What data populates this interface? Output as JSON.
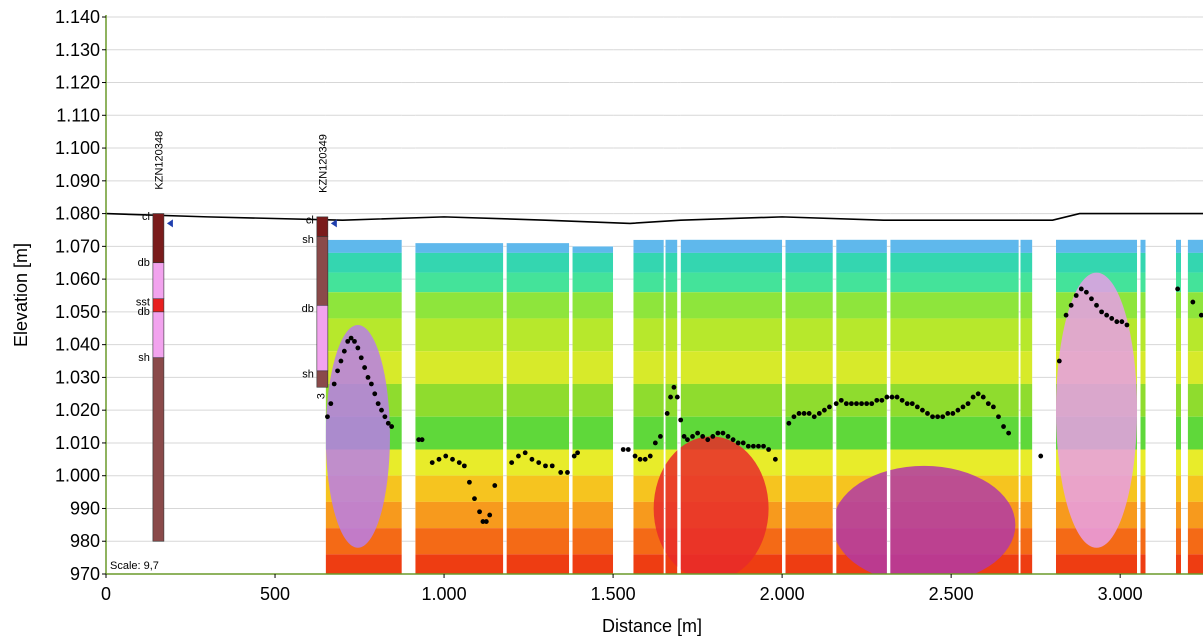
{
  "chart_data": {
    "type": "section",
    "xlabel": "Distance [m]",
    "ylabel": "Elevation [m]",
    "xlim": [
      0,
      3245
    ],
    "ylim": [
      970,
      1140
    ],
    "x_ticks": [
      {
        "value": 0,
        "label": "0"
      },
      {
        "value": 500,
        "label": "500"
      },
      {
        "value": 1000,
        "label": "1.000"
      },
      {
        "value": 1500,
        "label": "1.500"
      },
      {
        "value": 2000,
        "label": "2.000"
      },
      {
        "value": 2500,
        "label": "2.500"
      },
      {
        "value": 3000,
        "label": "3.000"
      }
    ],
    "y_ticks": [
      {
        "value": 970,
        "label": "970"
      },
      {
        "value": 980,
        "label": "980"
      },
      {
        "value": 990,
        "label": "990"
      },
      {
        "value": 1000,
        "label": "1.000"
      },
      {
        "value": 1010,
        "label": "1.010"
      },
      {
        "value": 1020,
        "label": "1.020"
      },
      {
        "value": 1030,
        "label": "1.030"
      },
      {
        "value": 1040,
        "label": "1.040"
      },
      {
        "value": 1050,
        "label": "1.050"
      },
      {
        "value": 1060,
        "label": "1.060"
      },
      {
        "value": 1070,
        "label": "1.070"
      },
      {
        "value": 1080,
        "label": "1.080"
      },
      {
        "value": 1090,
        "label": "1.090"
      },
      {
        "value": 1100,
        "label": "1.100"
      },
      {
        "value": 1110,
        "label": "1.110"
      },
      {
        "value": 1120,
        "label": "1.120"
      },
      {
        "value": 1130,
        "label": "1.130"
      },
      {
        "value": 1140,
        "label": "1.140"
      }
    ],
    "grid": "horizontal",
    "scale_label": "Scale: 9,7",
    "surface": [
      [
        0,
        1080
      ],
      [
        300,
        1079
      ],
      [
        700,
        1078
      ],
      [
        1000,
        1079
      ],
      [
        1300,
        1078
      ],
      [
        1550,
        1077
      ],
      [
        1700,
        1078
      ],
      [
        2000,
        1079
      ],
      [
        2300,
        1078
      ],
      [
        2550,
        1078
      ],
      [
        2800,
        1078
      ],
      [
        2880,
        1080
      ],
      [
        3245,
        1080
      ]
    ],
    "boreholes": [
      {
        "name": "KZN120348",
        "x": 155,
        "top": 1080,
        "bottom": 980,
        "water_level": 1077,
        "bottom_label": "",
        "layers": [
          {
            "code": "cl",
            "top": 1080,
            "bottom": 1065,
            "color": "#7a1c1c"
          },
          {
            "code": "db",
            "top": 1065,
            "bottom": 1054,
            "color": "#f2a3ee"
          },
          {
            "code": "sst",
            "top": 1054,
            "bottom": 1050,
            "color": "#e82020"
          },
          {
            "code": "db",
            "top": 1050,
            "bottom": 1036,
            "color": "#f2a3ee"
          },
          {
            "code": "sh",
            "top": 1036,
            "bottom": 980,
            "color": "#8a4a4a"
          }
        ],
        "labels": [
          {
            "text": "cl",
            "elev": 1078
          },
          {
            "text": "db",
            "elev": 1064
          },
          {
            "text": "sst",
            "elev": 1052
          },
          {
            "text": "db",
            "elev": 1049
          },
          {
            "text": "sh",
            "elev": 1035
          }
        ]
      },
      {
        "name": "KZN120349",
        "x": 640,
        "top": 1079,
        "bottom": 1027,
        "water_level": 1077,
        "bottom_label": "3",
        "layers": [
          {
            "code": "cl",
            "top": 1079,
            "bottom": 1073,
            "color": "#7a1c1c"
          },
          {
            "code": "sh",
            "top": 1073,
            "bottom": 1052,
            "color": "#8a4a4a"
          },
          {
            "code": "db",
            "top": 1052,
            "bottom": 1032,
            "color": "#f2a3ee"
          },
          {
            "code": "sh",
            "top": 1032,
            "bottom": 1027,
            "color": "#8a4a4a"
          }
        ],
        "labels": [
          {
            "text": "cl",
            "elev": 1077
          },
          {
            "text": "sh",
            "elev": 1071
          },
          {
            "text": "db",
            "elev": 1050
          },
          {
            "text": "sh",
            "elev": 1030
          }
        ]
      }
    ],
    "resistivity_bands": [
      {
        "top": 1072,
        "bottom": 1068,
        "color": "#5fb8ec"
      },
      {
        "top": 1068,
        "bottom": 1062,
        "color": "#34d6b0"
      },
      {
        "top": 1062,
        "bottom": 1056,
        "color": "#44e39a"
      },
      {
        "top": 1056,
        "bottom": 1048,
        "color": "#8ee53c"
      },
      {
        "top": 1048,
        "bottom": 1038,
        "color": "#b7e82c"
      },
      {
        "top": 1038,
        "bottom": 1028,
        "color": "#d7ea2a"
      },
      {
        "top": 1028,
        "bottom": 1018,
        "color": "#8fdc2e"
      },
      {
        "top": 1018,
        "bottom": 1008,
        "color": "#5fd83a"
      },
      {
        "top": 1008,
        "bottom": 1000,
        "color": "#e8ec2a"
      },
      {
        "top": 1000,
        "bottom": 992,
        "color": "#f6c41f"
      },
      {
        "top": 992,
        "bottom": 984,
        "color": "#f79a1d"
      },
      {
        "top": 984,
        "bottom": 976,
        "color": "#f46a16"
      },
      {
        "top": 976,
        "bottom": 970,
        "color": "#ee3d12"
      }
    ],
    "sections": [
      {
        "x0": 650,
        "x1": 875,
        "top": 1072,
        "bottom": 970
      },
      {
        "x0": 915,
        "x1": 1175,
        "top": 1071,
        "bottom": 970
      },
      {
        "x0": 1185,
        "x1": 1370,
        "top": 1071,
        "bottom": 970
      },
      {
        "x0": 1380,
        "x1": 1500,
        "top": 1070,
        "bottom": 970
      },
      {
        "x0": 1560,
        "x1": 1650,
        "top": 1072,
        "bottom": 970
      },
      {
        "x0": 1655,
        "x1": 1690,
        "top": 1073,
        "bottom": 970
      },
      {
        "x0": 1700,
        "x1": 2000,
        "top": 1074,
        "bottom": 970
      },
      {
        "x0": 2010,
        "x1": 2150,
        "top": 1072,
        "bottom": 970
      },
      {
        "x0": 2160,
        "x1": 2310,
        "top": 1074,
        "bottom": 970
      },
      {
        "x0": 2320,
        "x1": 2700,
        "top": 1075,
        "bottom": 970
      },
      {
        "x0": 2705,
        "x1": 2740,
        "top": 1079,
        "bottom": 970
      },
      {
        "x0": 2810,
        "x1": 3050,
        "top": 1075,
        "bottom": 970
      },
      {
        "x0": 3060,
        "x1": 3075,
        "top": 1074,
        "bottom": 970
      },
      {
        "x0": 3165,
        "x1": 3180,
        "top": 1073,
        "bottom": 970
      },
      {
        "x0": 3200,
        "x1": 3245,
        "top": 1073,
        "bottom": 970
      }
    ],
    "anomalies": [
      {
        "cx": 745,
        "cy": 1012,
        "rx": 95,
        "ry": 34,
        "color": "#b97ee8"
      },
      {
        "cx": 1790,
        "cy": 990,
        "rx": 170,
        "ry": 22,
        "color": "#e82a2a"
      },
      {
        "cx": 2420,
        "cy": 985,
        "rx": 270,
        "ry": 18,
        "color": "#b23aa6"
      },
      {
        "cx": 2930,
        "cy": 1020,
        "rx": 120,
        "ry": 42,
        "color": "#e79ee8"
      }
    ],
    "interface_points": [
      [
        655,
        1018
      ],
      [
        665,
        1022
      ],
      [
        675,
        1028
      ],
      [
        685,
        1032
      ],
      [
        695,
        1035
      ],
      [
        705,
        1038
      ],
      [
        715,
        1041
      ],
      [
        725,
        1042
      ],
      [
        735,
        1041
      ],
      [
        745,
        1039
      ],
      [
        755,
        1036
      ],
      [
        765,
        1033
      ],
      [
        775,
        1030
      ],
      [
        785,
        1028
      ],
      [
        795,
        1025
      ],
      [
        805,
        1022
      ],
      [
        815,
        1020
      ],
      [
        825,
        1018
      ],
      [
        835,
        1016
      ],
      [
        845,
        1015
      ],
      [
        925,
        1011
      ],
      [
        935,
        1011
      ],
      [
        965,
        1004
      ],
      [
        985,
        1005
      ],
      [
        1005,
        1006
      ],
      [
        1025,
        1005
      ],
      [
        1045,
        1004
      ],
      [
        1060,
        1003
      ],
      [
        1075,
        998
      ],
      [
        1090,
        993
      ],
      [
        1105,
        989
      ],
      [
        1115,
        986
      ],
      [
        1125,
        986
      ],
      [
        1135,
        988
      ],
      [
        1150,
        997
      ],
      [
        1200,
        1004
      ],
      [
        1220,
        1006
      ],
      [
        1240,
        1007
      ],
      [
        1260,
        1005
      ],
      [
        1280,
        1004
      ],
      [
        1300,
        1003
      ],
      [
        1320,
        1003
      ],
      [
        1345,
        1001
      ],
      [
        1365,
        1001
      ],
      [
        1385,
        1006
      ],
      [
        1395,
        1007
      ],
      [
        1530,
        1008
      ],
      [
        1545,
        1008
      ],
      [
        1565,
        1006
      ],
      [
        1580,
        1005
      ],
      [
        1595,
        1005
      ],
      [
        1610,
        1006
      ],
      [
        1625,
        1010
      ],
      [
        1640,
        1012
      ],
      [
        1660,
        1019
      ],
      [
        1670,
        1024
      ],
      [
        1680,
        1027
      ],
      [
        1690,
        1024
      ],
      [
        1700,
        1017
      ],
      [
        1710,
        1012
      ],
      [
        1720,
        1011
      ],
      [
        1735,
        1012
      ],
      [
        1750,
        1013
      ],
      [
        1765,
        1012
      ],
      [
        1780,
        1011
      ],
      [
        1795,
        1012
      ],
      [
        1810,
        1013
      ],
      [
        1825,
        1013
      ],
      [
        1840,
        1012
      ],
      [
        1855,
        1011
      ],
      [
        1870,
        1010
      ],
      [
        1885,
        1010
      ],
      [
        1900,
        1009
      ],
      [
        1915,
        1009
      ],
      [
        1930,
        1009
      ],
      [
        1945,
        1009
      ],
      [
        1960,
        1008
      ],
      [
        1980,
        1005
      ],
      [
        2020,
        1016
      ],
      [
        2035,
        1018
      ],
      [
        2050,
        1019
      ],
      [
        2065,
        1019
      ],
      [
        2080,
        1019
      ],
      [
        2095,
        1018
      ],
      [
        2110,
        1019
      ],
      [
        2125,
        1020
      ],
      [
        2140,
        1021
      ],
      [
        2160,
        1022
      ],
      [
        2175,
        1023
      ],
      [
        2190,
        1022
      ],
      [
        2205,
        1022
      ],
      [
        2220,
        1022
      ],
      [
        2235,
        1022
      ],
      [
        2250,
        1022
      ],
      [
        2265,
        1022
      ],
      [
        2280,
        1023
      ],
      [
        2295,
        1023
      ],
      [
        2310,
        1024
      ],
      [
        2325,
        1024
      ],
      [
        2340,
        1024
      ],
      [
        2355,
        1023
      ],
      [
        2370,
        1022
      ],
      [
        2385,
        1022
      ],
      [
        2400,
        1021
      ],
      [
        2415,
        1020
      ],
      [
        2430,
        1019
      ],
      [
        2445,
        1018
      ],
      [
        2460,
        1018
      ],
      [
        2475,
        1018
      ],
      [
        2490,
        1019
      ],
      [
        2505,
        1019
      ],
      [
        2520,
        1020
      ],
      [
        2535,
        1021
      ],
      [
        2550,
        1022
      ],
      [
        2565,
        1024
      ],
      [
        2580,
        1025
      ],
      [
        2595,
        1024
      ],
      [
        2610,
        1022
      ],
      [
        2625,
        1021
      ],
      [
        2640,
        1018
      ],
      [
        2655,
        1015
      ],
      [
        2670,
        1013
      ],
      [
        2765,
        1006
      ],
      [
        2820,
        1035
      ],
      [
        2840,
        1049
      ],
      [
        2855,
        1052
      ],
      [
        2870,
        1055
      ],
      [
        2885,
        1057
      ],
      [
        2900,
        1056
      ],
      [
        2915,
        1054
      ],
      [
        2930,
        1052
      ],
      [
        2945,
        1050
      ],
      [
        2960,
        1049
      ],
      [
        2975,
        1048
      ],
      [
        2990,
        1047
      ],
      [
        3005,
        1047
      ],
      [
        3020,
        1046
      ],
      [
        3170,
        1057
      ],
      [
        3215,
        1053
      ],
      [
        3240,
        1049
      ]
    ]
  }
}
